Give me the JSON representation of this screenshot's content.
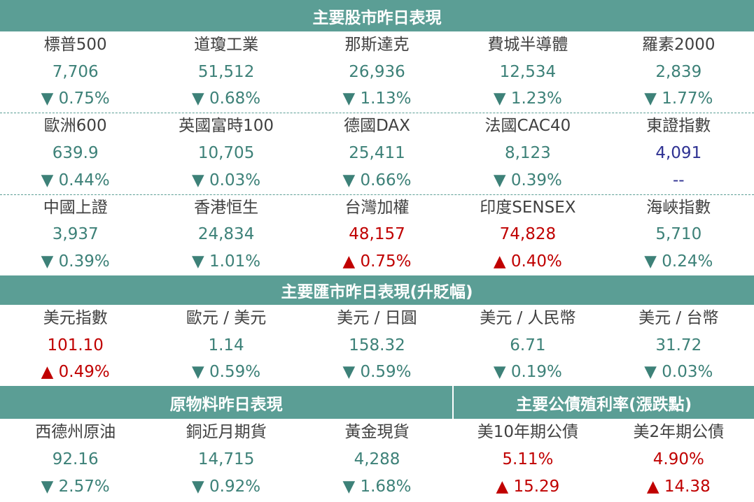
{
  "sections": [
    {
      "groups": [
        {
          "title": "主要股市昨日表現",
          "rows": [
            [
              {
                "name": "標普500",
                "value": "7,706",
                "change": "▼ 0.75%"
              },
              {
                "name": "道瓊工業",
                "value": "51,512",
                "change": "▼ 0.68%"
              },
              {
                "name": "那斯達克",
                "value": "26,936",
                "change": "▼ 1.13%"
              },
              {
                "name": "費城半導體",
                "value": "12,534",
                "change": "▼ 1.23%"
              },
              {
                "name": "羅素2000",
                "value": "2,839",
                "change": "▼ 1.77%"
              }
            ],
            [
              {
                "name": "歐洲600",
                "value": "639.9",
                "change": "▼ 0.44%"
              },
              {
                "name": "英國富時100",
                "value": "10,705",
                "change": "▼ 0.03%"
              },
              {
                "name": "德國DAX",
                "value": "25,411",
                "change": "▼ 0.66%"
              },
              {
                "name": "法國CAC40",
                "value": "8,123",
                "change": "▼ 0.39%"
              },
              {
                "name": "東證指數",
                "value": "4,091",
                "change": "--",
                "value_color": "#2e3192",
                "change_color": "#2e3192"
              }
            ],
            [
              {
                "name": "中國上證",
                "value": "3,937",
                "change": "▼ 0.39%"
              },
              {
                "name": "香港恒生",
                "value": "24,834",
                "change": "▼ 1.01%"
              },
              {
                "name": "台灣加權",
                "value": "48,157",
                "change": "▲ 0.75%",
                "value_color": "#c00000",
                "change_color": "#c00000"
              },
              {
                "name": "印度SENSEX",
                "value": "74,828",
                "change": "▲ 0.40%",
                "value_color": "#c00000",
                "change_color": "#c00000"
              },
              {
                "name": "海峽指數",
                "value": "5,710",
                "change": "▼ 0.24%"
              }
            ]
          ]
        }
      ]
    },
    {
      "groups": [
        {
          "title": "主要匯市昨日表現(升貶幅)",
          "rows": [
            [
              {
                "name": "美元指數",
                "value": "101.10",
                "change": "▲ 0.49%",
                "value_color": "#c00000",
                "change_color": "#c00000"
              },
              {
                "name": "歐元 / 美元",
                "value": "1.14",
                "change": "▼ 0.59%"
              },
              {
                "name": "美元 / 日圓",
                "value": "158.32",
                "change": "▼ 0.59%"
              },
              {
                "name": "美元 / 人民幣",
                "value": "6.71",
                "change": "▼ 0.19%"
              },
              {
                "name": "美元 / 台幣",
                "value": "31.72",
                "change": "▼ 0.03%"
              }
            ]
          ]
        }
      ]
    },
    {
      "groups": [
        {
          "title": "原物料昨日表現",
          "rows": [
            [
              {
                "name": "西德州原油",
                "value": "92.16",
                "change": "▼ 2.57%"
              },
              {
                "name": "銅近月期貨",
                "value": "14,715",
                "change": "▼ 0.92%"
              },
              {
                "name": "黃金現貨",
                "value": "4,288",
                "change": "▼ 1.68%"
              }
            ]
          ]
        },
        {
          "title": "主要公債殖利率(漲跌點)",
          "rows": [
            [
              {
                "name": "美10年期公債",
                "value": "5.11%",
                "change": "▲ 15.29",
                "value_color": "#c00000",
                "change_color": "#c00000"
              },
              {
                "name": "美2年期公債",
                "value": "4.90%",
                "change": "▲ 14.38",
                "value_color": "#c00000",
                "change_color": "#c00000"
              }
            ]
          ]
        }
      ]
    }
  ]
}
